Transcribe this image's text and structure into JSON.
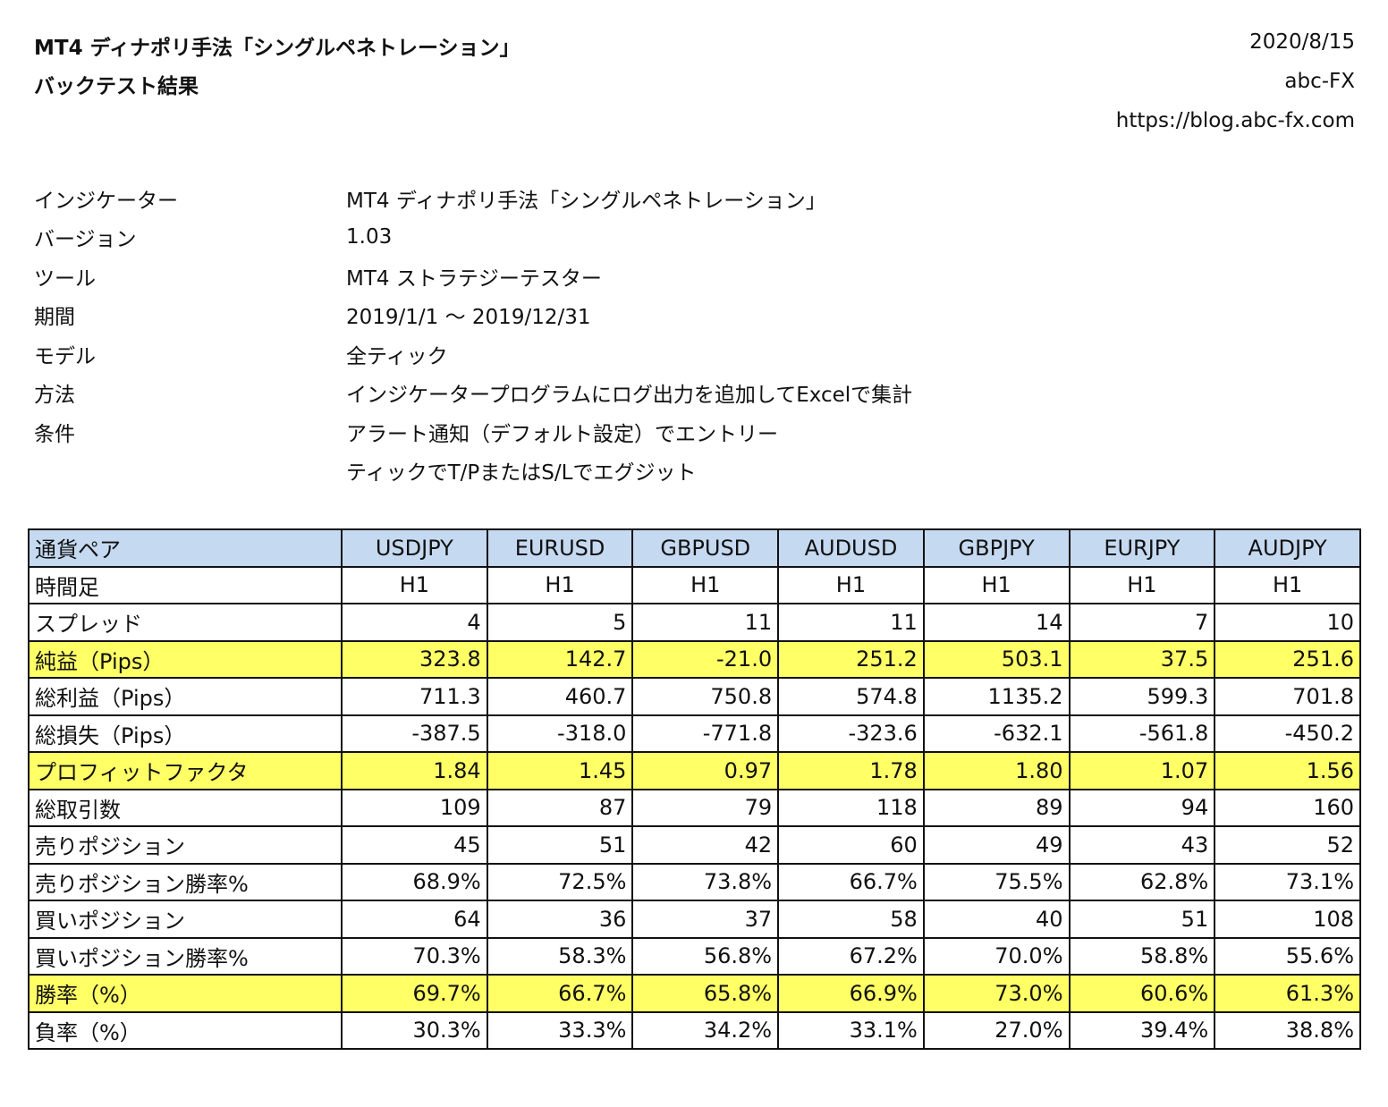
{
  "header": {
    "title_line1": "MT4 ディナポリ手法「シングルペネトレーション」",
    "title_line2": "バックテスト結果",
    "date": "2020/8/15",
    "author": "abc-FX",
    "url": "https://blog.abc-fx.com"
  },
  "info": [
    {
      "label": "インジケーター",
      "value": "MT4 ディナポリ手法「シングルペネトレーション」"
    },
    {
      "label": "バージョン",
      "value": "1.03"
    },
    {
      "label": "ツール",
      "value": "MT4 ストラテジーテスター"
    },
    {
      "label": "期間",
      "value": "2019/1/1 ～ 2019/12/31"
    },
    {
      "label": "モデル",
      "value": "全ティック"
    },
    {
      "label": "方法",
      "value": "インジケータープログラムにログ出力を追加してExcelで集計"
    },
    {
      "label": "条件",
      "value": "アラート通知（デフォルト設定）でエントリー"
    },
    {
      "label": "",
      "value": "ティックでT/PまたはS/Lでエグジット"
    }
  ],
  "colors": {
    "header_bg": "#c5d9f1",
    "highlight": "#ffff66"
  },
  "table": {
    "header_label": "通貨ペア",
    "pairs": [
      "USDJPY",
      "EURUSD",
      "GBPUSD",
      "AUDUSD",
      "GBPJPY",
      "EURJPY",
      "AUDJPY"
    ],
    "rows": [
      {
        "label": "時間足",
        "values": [
          "H1",
          "H1",
          "H1",
          "H1",
          "H1",
          "H1",
          "H1"
        ],
        "type": "tf"
      },
      {
        "label": "スプレッド",
        "values": [
          "4",
          "5",
          "11",
          "11",
          "14",
          "7",
          "10"
        ]
      },
      {
        "label": "純益（Pips）",
        "values": [
          "323.8",
          "142.7",
          "-21.0",
          "251.2",
          "503.1",
          "37.5",
          "251.6"
        ],
        "highlight": true
      },
      {
        "label": "総利益（Pips）",
        "values": [
          "711.3",
          "460.7",
          "750.8",
          "574.8",
          "1135.2",
          "599.3",
          "701.8"
        ]
      },
      {
        "label": "総損失（Pips）",
        "values": [
          "-387.5",
          "-318.0",
          "-771.8",
          "-323.6",
          "-632.1",
          "-561.8",
          "-450.2"
        ]
      },
      {
        "label": "プロフィットファクタ",
        "values": [
          "1.84",
          "1.45",
          "0.97",
          "1.78",
          "1.80",
          "1.07",
          "1.56"
        ],
        "highlight": true
      },
      {
        "label": "総取引数",
        "values": [
          "109",
          "87",
          "79",
          "118",
          "89",
          "94",
          "160"
        ]
      },
      {
        "label": "売りポジション",
        "values": [
          "45",
          "51",
          "42",
          "60",
          "49",
          "43",
          "52"
        ]
      },
      {
        "label": "売りポジション勝率%",
        "values": [
          "68.9%",
          "72.5%",
          "73.8%",
          "66.7%",
          "75.5%",
          "62.8%",
          "73.1%"
        ]
      },
      {
        "label": "買いポジション",
        "values": [
          "64",
          "36",
          "37",
          "58",
          "40",
          "51",
          "108"
        ]
      },
      {
        "label": "買いポジション勝率%",
        "values": [
          "70.3%",
          "58.3%",
          "56.8%",
          "67.2%",
          "70.0%",
          "58.8%",
          "55.6%"
        ]
      },
      {
        "label": "勝率（%）",
        "values": [
          "69.7%",
          "66.7%",
          "65.8%",
          "66.9%",
          "73.0%",
          "60.6%",
          "61.3%"
        ],
        "highlight": true
      },
      {
        "label": "負率（%）",
        "values": [
          "30.3%",
          "33.3%",
          "34.2%",
          "33.1%",
          "27.0%",
          "39.4%",
          "38.8%"
        ]
      }
    ]
  }
}
